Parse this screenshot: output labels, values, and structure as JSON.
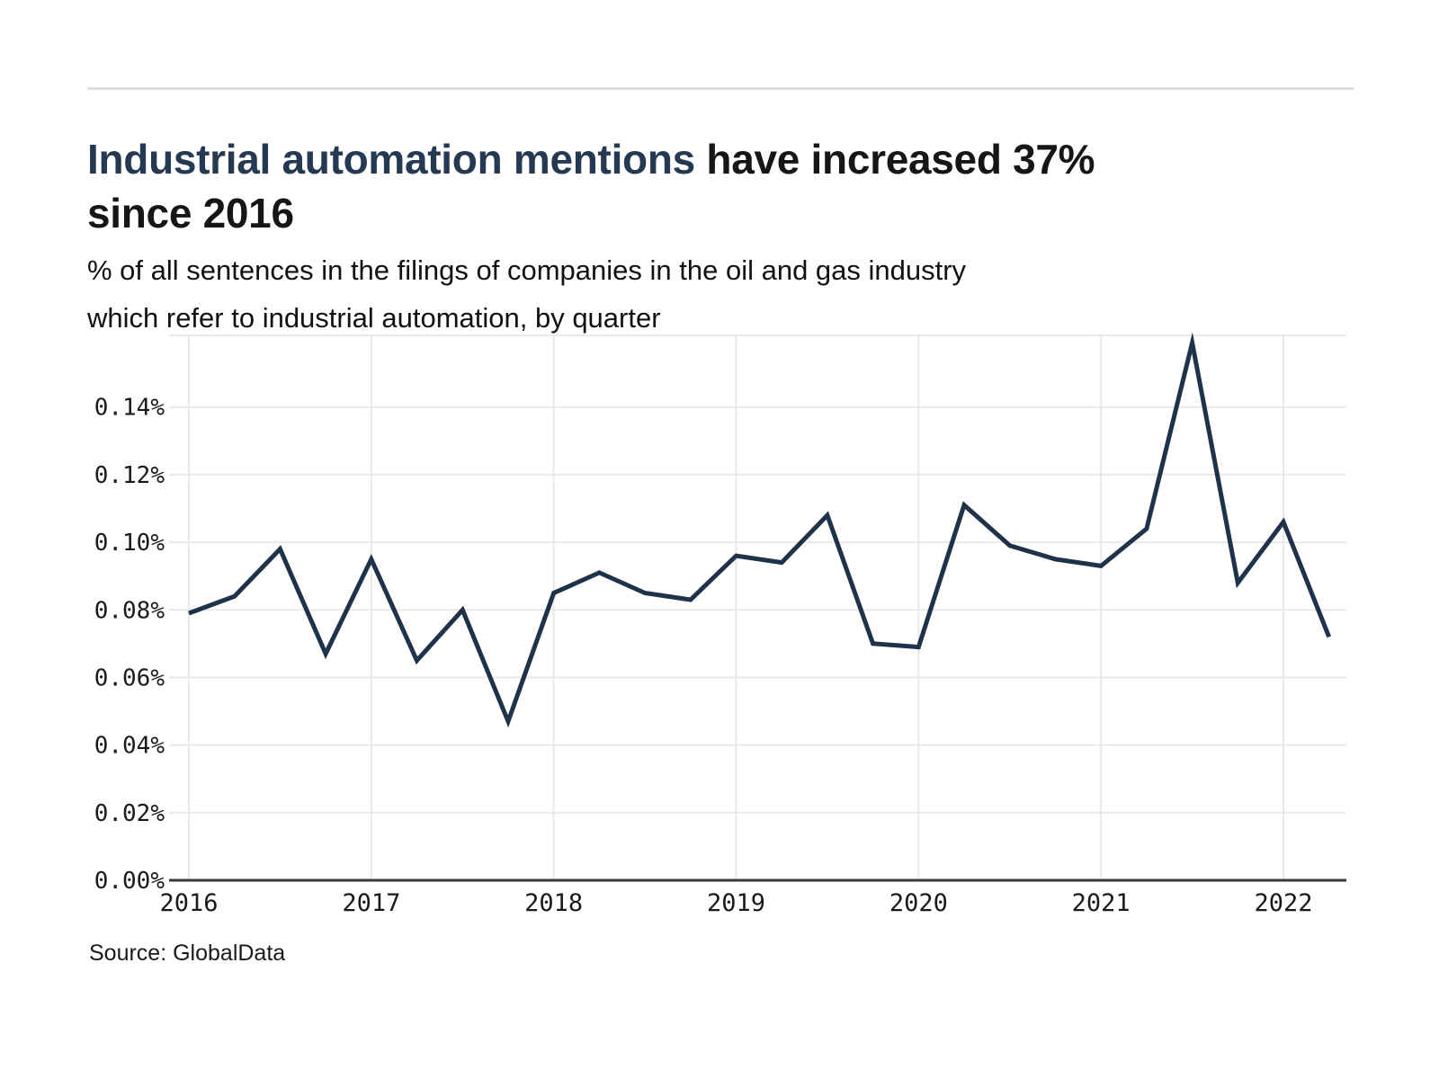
{
  "header": {
    "title_highlight": "Industrial automation mentions",
    "title_rest": " have increased 37%",
    "title_line2": "since 2016",
    "subtitle_line1": "% of all sentences in the filings of companies in the oil and gas industry",
    "subtitle_line2": "which refer to industrial automation, by quarter"
  },
  "footer": {
    "source": "Source: GlobalData"
  },
  "colors": {
    "title_highlight": "#253a52",
    "title_text": "#161616",
    "line": "#1e3349",
    "grid": "#e9e9e9",
    "axis": "#3a3a3a",
    "tick_text": "#1a1a1a"
  },
  "chart_data": {
    "type": "line",
    "title": "Industrial automation mentions have increased 37% since 2016",
    "subtitle": "% of all sentences in the filings of companies in the oil and gas industry which refer to industrial automation, by quarter",
    "categories": [
      "2016 Q1",
      "2016 Q2",
      "2016 Q3",
      "2016 Q4",
      "2017 Q1",
      "2017 Q2",
      "2017 Q3",
      "2017 Q4",
      "2018 Q1",
      "2018 Q2",
      "2018 Q3",
      "2018 Q4",
      "2019 Q1",
      "2019 Q2",
      "2019 Q3",
      "2019 Q4",
      "2020 Q1",
      "2020 Q2",
      "2020 Q3",
      "2020 Q4",
      "2021 Q1",
      "2021 Q2",
      "2021 Q3",
      "2021 Q4",
      "2022 Q1",
      "2022 Q2"
    ],
    "values": [
      0.079,
      0.084,
      0.098,
      0.067,
      0.095,
      0.065,
      0.08,
      0.047,
      0.085,
      0.091,
      0.085,
      0.083,
      0.096,
      0.094,
      0.108,
      0.07,
      0.069,
      0.111,
      0.099,
      0.095,
      0.093,
      0.104,
      0.159,
      0.088,
      0.106,
      0.072
    ],
    "value_unit": "%",
    "ylim": [
      0,
      0.1612
    ],
    "yticks": [
      0,
      0.02,
      0.04,
      0.06,
      0.08,
      0.1,
      0.12,
      0.14
    ],
    "ytick_labels": [
      "0.00%",
      "0.02%",
      "0.04%",
      "0.06%",
      "0.08%",
      "0.10%",
      "0.12%",
      "0.14%"
    ],
    "year_labels": [
      "2016",
      "2017",
      "2018",
      "2019",
      "2020",
      "2021",
      "2022"
    ],
    "grid": true,
    "legend": false
  }
}
